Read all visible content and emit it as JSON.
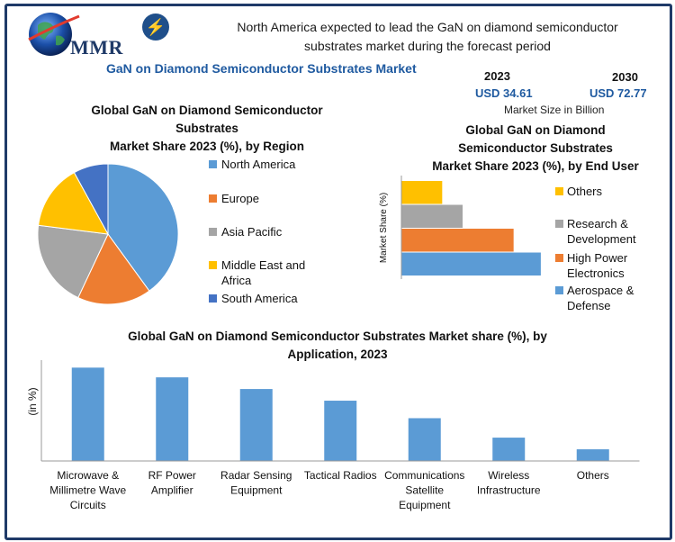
{
  "header": {
    "logo_text": "MMR",
    "headline_line1": "North America expected to lead the GaN on diamond semiconductor",
    "headline_line2": "substrates market during the forecast period",
    "main_title": "GaN on Diamond Semiconductor Substrates Market",
    "year_2023": "2023",
    "value_2023": "USD 34.61",
    "year_2030": "2030",
    "value_2030": "USD 72.77",
    "market_size_note": "Market Size in Billion"
  },
  "colors": {
    "blue": "#5b9bd5",
    "orange": "#ed7d31",
    "gray": "#a5a5a5",
    "yellow": "#ffc000",
    "darkblue": "#4472c4",
    "frame": "#1f3a68"
  },
  "chart_data": [
    {
      "type": "pie",
      "title_line1": "Global GaN on Diamond Semiconductor",
      "title_line2": "Substrates",
      "title_line3": "Market Share 2023 (%), by Region",
      "categories": [
        "North America",
        "Europe",
        "Asia Pacific",
        "Middle East and Africa",
        "South America"
      ],
      "legend_labels": [
        [
          "North America"
        ],
        [
          "Europe"
        ],
        [
          "Asia Pacific"
        ],
        [
          "Middle East and",
          "Africa"
        ],
        [
          "South America"
        ]
      ],
      "values": [
        40,
        17,
        20,
        15,
        8
      ],
      "colors": [
        "#5b9bd5",
        "#ed7d31",
        "#a5a5a5",
        "#ffc000",
        "#4472c4"
      ],
      "legend": "right"
    },
    {
      "type": "bar",
      "orientation": "horizontal",
      "title_line1": "Global GaN on Diamond",
      "title_line2": "Semiconductor Substrates",
      "title_line3": "Market Share 2023 (%), by End User",
      "ylabel": "Market Share (%)",
      "categories": [
        "Others",
        "Research & Development",
        "High Power Electronics",
        "Aerospace & Defense"
      ],
      "legend_labels": [
        [
          "Others"
        ],
        [
          "Research &",
          "Development"
        ],
        [
          "High Power",
          "Electronics"
        ],
        [
          "Aerospace &",
          "Defense"
        ]
      ],
      "values": [
        12,
        18,
        33,
        41
      ],
      "colors": [
        "#ffc000",
        "#a5a5a5",
        "#ed7d31",
        "#5b9bd5"
      ],
      "xlim": [
        0,
        45
      ],
      "legend": "right"
    },
    {
      "type": "bar",
      "title_line1": "Global GaN on Diamond Semiconductor Substrates Market share (%), by",
      "title_line2": "Application, 2023",
      "ylabel": "(in %)",
      "categories": [
        "Microwave & Millimetre Wave Circuits",
        "RF Power Amplifier",
        "Radar Sensing Equipment",
        "Tactical Radios",
        "Communications Satellite Equipment",
        "Wireless Infrastructure",
        "Others"
      ],
      "category_lines": [
        [
          "Microwave &",
          "Millimetre Wave",
          "Circuits"
        ],
        [
          "RF Power",
          "Amplifier"
        ],
        [
          "Radar Sensing",
          "Equipment"
        ],
        [
          "Tactical Radios"
        ],
        [
          "Communications",
          "Satellite",
          "Equipment"
        ],
        [
          "Wireless",
          "Infrastructure"
        ],
        [
          "Others"
        ]
      ],
      "values": [
        24,
        21.5,
        18.5,
        15.5,
        11,
        6,
        3
      ],
      "color": "#5b9bd5",
      "ylim": [
        0,
        25
      ]
    }
  ]
}
